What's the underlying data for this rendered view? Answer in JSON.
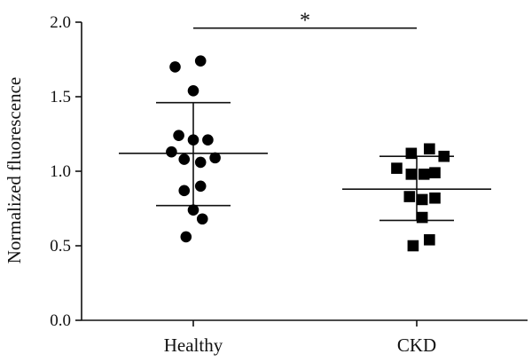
{
  "chart_data": {
    "type": "scatter",
    "ylabel": "Normalized fluorescence",
    "ylim": [
      0,
      2.0
    ],
    "yticks": [
      "0.0",
      "0.5",
      "1.0",
      "1.5",
      "2.0"
    ],
    "categories": [
      "Healthy",
      "CKD"
    ],
    "groups": [
      {
        "category": "Healthy",
        "marker": "circle",
        "mean": 1.12,
        "sd_low": 0.77,
        "sd_high": 1.46,
        "points": [
          {
            "dx": -0.1,
            "y": 1.7
          },
          {
            "dx": 0.04,
            "y": 1.74
          },
          {
            "dx": 0.0,
            "y": 1.54
          },
          {
            "dx": -0.08,
            "y": 1.24
          },
          {
            "dx": 0.0,
            "y": 1.21
          },
          {
            "dx": 0.08,
            "y": 1.21
          },
          {
            "dx": -0.12,
            "y": 1.13
          },
          {
            "dx": -0.05,
            "y": 1.08
          },
          {
            "dx": 0.04,
            "y": 1.06
          },
          {
            "dx": 0.12,
            "y": 1.09
          },
          {
            "dx": -0.05,
            "y": 0.87
          },
          {
            "dx": 0.04,
            "y": 0.9
          },
          {
            "dx": 0.0,
            "y": 0.74
          },
          {
            "dx": 0.05,
            "y": 0.68
          },
          {
            "dx": -0.04,
            "y": 0.56
          }
        ]
      },
      {
        "category": "CKD",
        "marker": "square",
        "mean": 0.88,
        "sd_low": 0.67,
        "sd_high": 1.1,
        "points": [
          {
            "dx": -0.11,
            "y": 1.02
          },
          {
            "dx": -0.03,
            "y": 1.12
          },
          {
            "dx": 0.07,
            "y": 1.15
          },
          {
            "dx": 0.15,
            "y": 1.1
          },
          {
            "dx": -0.03,
            "y": 0.98
          },
          {
            "dx": 0.04,
            "y": 0.98
          },
          {
            "dx": 0.1,
            "y": 0.99
          },
          {
            "dx": -0.04,
            "y": 0.83
          },
          {
            "dx": 0.03,
            "y": 0.81
          },
          {
            "dx": 0.1,
            "y": 0.82
          },
          {
            "dx": 0.03,
            "y": 0.69
          },
          {
            "dx": 0.07,
            "y": 0.54
          },
          {
            "dx": -0.02,
            "y": 0.5
          }
        ]
      }
    ],
    "significance": {
      "from": "Healthy",
      "to": "CKD",
      "y": 1.96,
      "label": "*"
    }
  }
}
